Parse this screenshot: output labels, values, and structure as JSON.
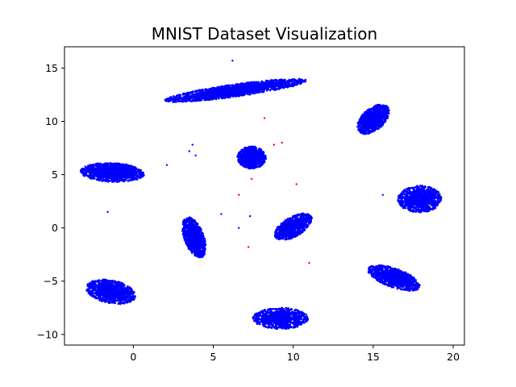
{
  "chart_data": {
    "type": "scatter",
    "title": "MNIST Dataset Visualization",
    "xlabel": "",
    "ylabel": "",
    "xlim": [
      -4.3,
      20.7
    ],
    "ylim": [
      -11.0,
      17.0
    ],
    "xticks": [
      0,
      5,
      10,
      15,
      20
    ],
    "yticks": [
      -10,
      -5,
      0,
      5,
      10,
      15
    ],
    "grid": false,
    "legend": "none",
    "colors": {
      "main": "#0000ff",
      "outlier": "#ff0000",
      "axes": "#000000",
      "background": "#ffffff"
    },
    "clusters": [
      {
        "center": [
          6.4,
          12.9
        ],
        "spread": [
          4.3,
          0.55
        ],
        "angle_deg": 12,
        "n": 1700
      },
      {
        "center": [
          15.0,
          10.2
        ],
        "spread": [
          0.75,
          1.45
        ],
        "angle_deg": -28,
        "n": 1000
      },
      {
        "center": [
          7.4,
          6.6
        ],
        "spread": [
          0.85,
          1.0
        ],
        "angle_deg": 0,
        "n": 900
      },
      {
        "center": [
          -1.3,
          5.2
        ],
        "spread": [
          1.9,
          0.85
        ],
        "angle_deg": -4,
        "n": 1200
      },
      {
        "center": [
          17.9,
          2.7
        ],
        "spread": [
          1.3,
          1.2
        ],
        "angle_deg": 10,
        "n": 1000
      },
      {
        "center": [
          10.0,
          0.1
        ],
        "spread": [
          0.75,
          1.45
        ],
        "angle_deg": -42,
        "n": 900
      },
      {
        "center": [
          3.8,
          -0.9
        ],
        "spread": [
          0.6,
          1.85
        ],
        "angle_deg": 12,
        "n": 1000
      },
      {
        "center": [
          -1.4,
          -6.0
        ],
        "spread": [
          1.55,
          1.0
        ],
        "angle_deg": -22,
        "n": 1100
      },
      {
        "center": [
          16.3,
          -4.7
        ],
        "spread": [
          1.75,
          0.8
        ],
        "angle_deg": -32,
        "n": 1000
      },
      {
        "center": [
          9.2,
          -8.5
        ],
        "spread": [
          1.65,
          0.95
        ],
        "angle_deg": 0,
        "n": 900
      }
    ],
    "outliers": [
      {
        "x": 6.2,
        "y": 15.7,
        "label": "blue"
      },
      {
        "x": 2.1,
        "y": 5.9,
        "label": "blue"
      },
      {
        "x": 3.5,
        "y": 7.2,
        "label": "blue"
      },
      {
        "x": 3.7,
        "y": 7.8,
        "label": "blue"
      },
      {
        "x": 3.9,
        "y": 6.8,
        "label": "blue"
      },
      {
        "x": 7.3,
        "y": 1.1,
        "label": "blue"
      },
      {
        "x": 5.5,
        "y": 1.3,
        "label": "blue"
      },
      {
        "x": 6.6,
        "y": 0.0,
        "label": "blue"
      },
      {
        "x": 15.6,
        "y": 3.1,
        "label": "blue"
      },
      {
        "x": -1.6,
        "y": 1.5,
        "label": "blue"
      },
      {
        "x": 8.2,
        "y": 10.3,
        "label": "red"
      },
      {
        "x": 9.3,
        "y": 8.0,
        "label": "red"
      },
      {
        "x": 8.8,
        "y": 7.8,
        "label": "red"
      },
      {
        "x": 10.2,
        "y": 4.1,
        "label": "red"
      },
      {
        "x": 6.6,
        "y": 3.1,
        "label": "red"
      },
      {
        "x": 7.2,
        "y": -1.8,
        "label": "red"
      },
      {
        "x": 11.0,
        "y": -3.3,
        "label": "red"
      },
      {
        "x": 7.4,
        "y": 4.6,
        "label": "red"
      }
    ]
  }
}
